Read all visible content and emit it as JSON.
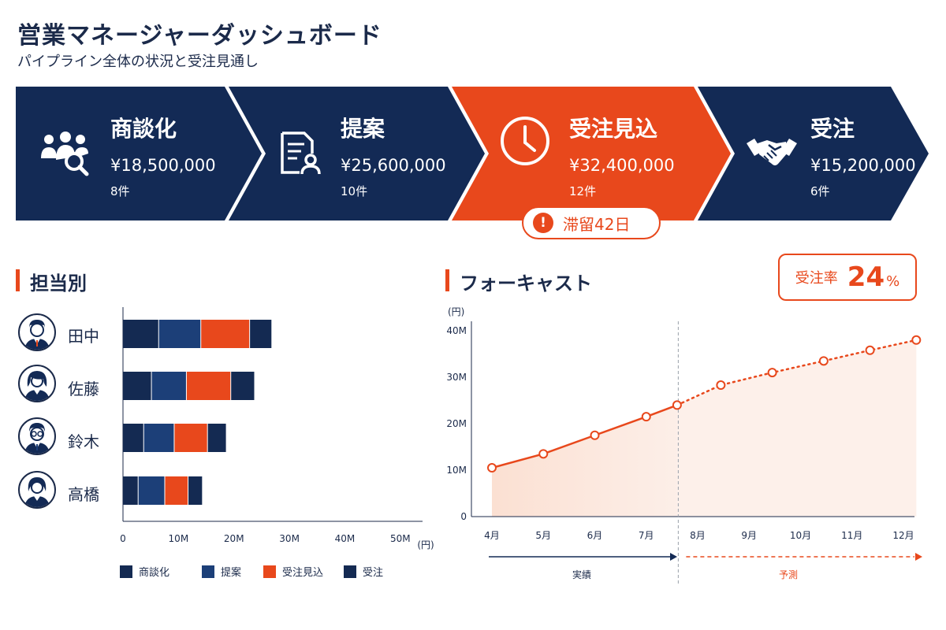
{
  "header": {
    "title": "営業マネージャーダッシュボード",
    "subtitle": "パイプライン全体の状況と受注見通し"
  },
  "colors": {
    "navy": "#132a55",
    "bar_navy": "#142a52",
    "bar_blue": "#1c3f78",
    "orange": "#e8481c",
    "forecast_fill": "#fbe3d8"
  },
  "pipeline": {
    "stages": [
      {
        "name": "商談化",
        "amount": "¥18,500,000",
        "count": "8件",
        "icon": "people-search-icon"
      },
      {
        "name": "提案",
        "amount": "¥25,600,000",
        "count": "10件",
        "icon": "document-person-icon"
      },
      {
        "name": "受注見込",
        "amount": "¥32,400,000",
        "count": "12件",
        "icon": "clock-icon",
        "highlighted": true
      },
      {
        "name": "受注",
        "amount": "¥15,200,000",
        "count": "6件",
        "icon": "handshake-icon"
      }
    ],
    "stall_badge": {
      "icon": "!",
      "text": "滞留42日"
    }
  },
  "by_rep": {
    "title": "担当別"
  },
  "forecast": {
    "title": "フォーキャスト",
    "rate_label": "受注率",
    "rate_value": "24",
    "rate_unit": "%"
  },
  "chart_data": [
    {
      "type": "bar",
      "orientation": "horizontal",
      "stacked": true,
      "categories": [
        "田中",
        "佐藤",
        "鈴木",
        "高橋"
      ],
      "series": [
        {
          "name": "商談化",
          "values": [
            6.5,
            5.2,
            3.8,
            2.8
          ],
          "color": "#142a52"
        },
        {
          "name": "提案",
          "values": [
            7.6,
            6.3,
            5.5,
            4.8
          ],
          "color": "#1c3f78"
        },
        {
          "name": "受注見込",
          "values": [
            8.8,
            8.0,
            6.0,
            4.2
          ],
          "color": "#e8481c"
        },
        {
          "name": "受注",
          "values": [
            4.0,
            4.3,
            3.4,
            2.6
          ],
          "color": "#142a52"
        }
      ],
      "xlim": [
        0,
        54
      ],
      "xticks": [
        "0",
        "10M",
        "20M",
        "30M",
        "40M",
        "50M"
      ],
      "xtick_values": [
        0,
        10,
        20,
        30,
        40,
        50
      ],
      "xlabel": "(円)",
      "legend_placement": "bottom"
    },
    {
      "type": "line",
      "x": [
        "4月",
        "5月",
        "6月",
        "7月",
        "8月",
        "9月",
        "10月",
        "11月",
        "12月"
      ],
      "series": [
        {
          "name": "実績",
          "x": [
            4,
            5,
            6,
            7,
            7.6
          ],
          "values": [
            10.5,
            13.5,
            17.5,
            21.5,
            24.0
          ],
          "style": "solid"
        },
        {
          "name": "予測",
          "x": [
            7.6,
            8.45,
            9.45,
            10.45,
            11.35,
            12.25
          ],
          "values": [
            24.0,
            28.3,
            31.0,
            33.5,
            35.8,
            38.0
          ],
          "style": "dotted"
        }
      ],
      "ylim": [
        0,
        40
      ],
      "yticks": [
        "0",
        "10M",
        "20M",
        "30M",
        "40M"
      ],
      "ytick_values": [
        0,
        10,
        20,
        30,
        40
      ],
      "ylabel": "(円)",
      "divider_after": "7月",
      "period_labels": {
        "actual": "実績",
        "forecast": "予測"
      }
    }
  ]
}
